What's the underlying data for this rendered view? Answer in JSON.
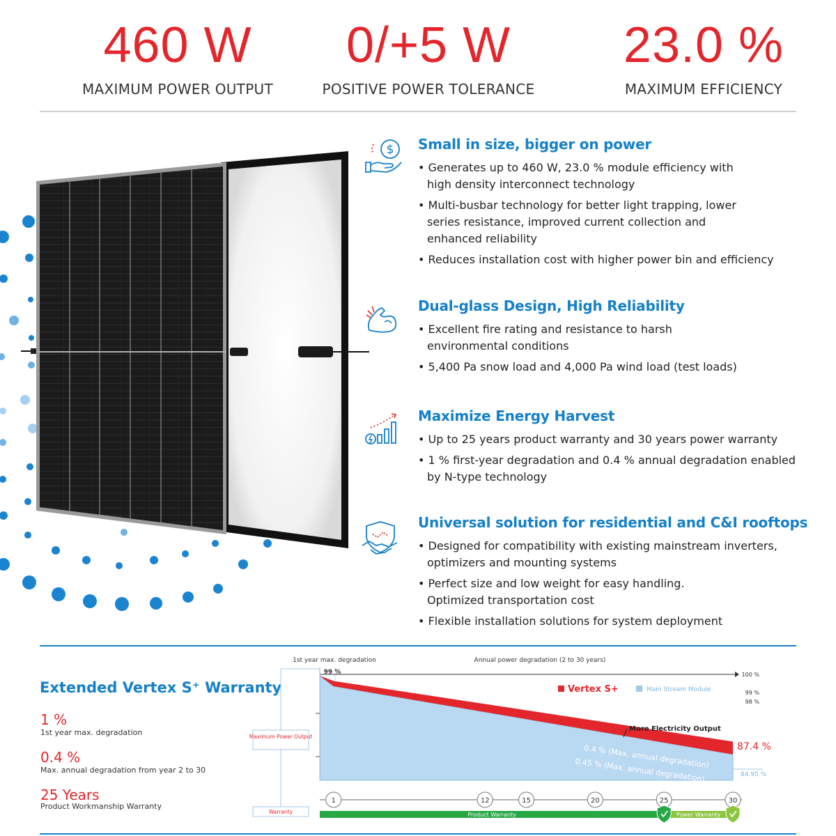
{
  "stats": [
    {
      "value": "460 W",
      "label": "MAXIMUM POWER OUTPUT"
    },
    {
      "value": "0/+5 W",
      "label": "POSITIVE POWER TOLERANCE"
    },
    {
      "value": "23.0 %",
      "label": "MAXIMUM EFFICIENCY"
    }
  ],
  "features": [
    {
      "title": "Small in size, bigger on power",
      "icon": "dollar-hand-icon",
      "bullets": [
        "Generates up to 460 W, 23.0 % module efficiency with high density interconnect technology",
        "Multi-busbar technology for better light trapping, lower series resistance, improved current collection and enhanced reliability",
        "Reduces installation cost with higher power bin and efficiency"
      ]
    },
    {
      "title": "Dual-glass Design, High Reliability",
      "icon": "muscle-arm-icon",
      "bullets": [
        "Excellent fire rating  and resistance to harsh environmental conditions",
        "5,400 Pa snow load and 4,000 Pa wind load (test loads)"
      ]
    },
    {
      "title": "Maximize Energy Harvest",
      "icon": "energy-growth-icon",
      "bullets": [
        "Up to 25 years product warranty and 30 years power warranty",
        "1 % first-year degradation and 0.4 % annual degradation enabled by N-type technology"
      ]
    },
    {
      "title": "Universal solution for residential and C&I rooftops",
      "icon": "handshake-shield-icon",
      "bullets": [
        "Designed for compatibility with existing mainstream inverters, optimizers and mounting systems",
        "Perfect size and low weight for easy handling. Optimized transportation cost",
        "Flexible installation solutions for system deployment"
      ]
    }
  ],
  "warranty": {
    "title": "Extended Vertex S⁺ Warranty",
    "items": [
      {
        "value": "1 %",
        "desc": "1st year max. degradation"
      },
      {
        "value": "0.4 %",
        "desc": "Max. annual degradation from year 2 to 30"
      },
      {
        "value": "25 Years",
        "desc": "Product Workmanship Warranty"
      }
    ]
  },
  "chart_data": {
    "type": "area",
    "top_labels": {
      "first_year": "1st year max. degradation",
      "annual": "Annual power degradation (2 to 30 years)",
      "first_year_value": "99 %"
    },
    "legend": [
      {
        "name": "Vertex S+",
        "color": "#e3262b"
      },
      {
        "name": "Main Stream Module",
        "color": "#9fcbea"
      }
    ],
    "right_labels": [
      "100 %",
      "99 %",
      "98 %"
    ],
    "left_labels": {
      "y": "Maximum Power Output",
      "x": "Warranty"
    },
    "x_ticks": [
      1,
      12,
      15,
      20,
      25,
      30
    ],
    "xlim": [
      0,
      30
    ],
    "ylim": [
      80,
      100
    ],
    "series": [
      {
        "name": "Vertex S+",
        "x": [
          0,
          1,
          30
        ],
        "y": [
          100,
          99,
          87.4
        ]
      },
      {
        "name": "Main Stream Module",
        "x": [
          0,
          1,
          30
        ],
        "y": [
          100,
          98,
          84.95
        ]
      }
    ],
    "annotations": {
      "vertex_rate": "0.4 % (Max. annual degradation)",
      "mainstream_rate": "0.45 % (Max. annual degradation)",
      "more_output": "More Electricity Output",
      "vertex_end": "87.4 %",
      "mainstream_end": "84.95 %"
    },
    "bars": {
      "product": "Product Warranty",
      "power": "Power Warranty",
      "product_years": 25,
      "power_years": 30
    },
    "colors": {
      "red": "#e3262b",
      "blue": "#b9d8f1",
      "green": "#28a745",
      "lightgreen": "#8cc63f"
    }
  }
}
